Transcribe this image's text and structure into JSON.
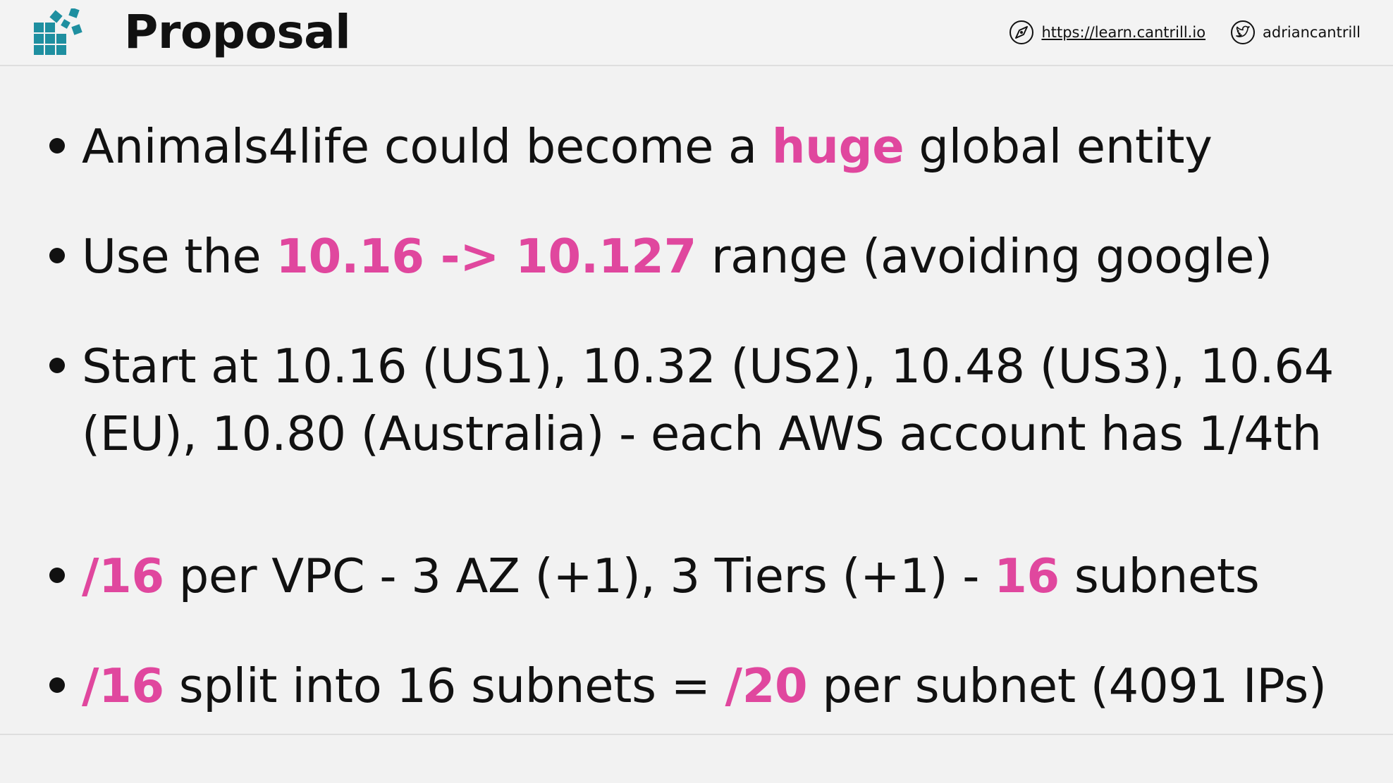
{
  "header": {
    "title": "Proposal",
    "website": "https://learn.cantrill.io",
    "twitter": "adriancantrill",
    "logo_icon": "cube-grid-logo-icon",
    "website_icon": "compass-icon",
    "twitter_icon": "twitter-bird-icon"
  },
  "colors": {
    "highlight": "#e0479e",
    "logo": "#1e8fa0"
  },
  "bullets": [
    {
      "pre": "Animals4life could become a ",
      "highlight": "huge",
      "post": " global entity"
    },
    {
      "pre": "Use the ",
      "highlight": "10.16 -> 10.127",
      "post": " range (avoiding google)"
    },
    {
      "line1": "Start at 10.16 (US1), 10.32 (US2), 10.48 (US3), 10.64",
      "line2": "(EU), 10.80 (Australia) - each AWS account has 1/4th"
    },
    {
      "highlight1": "/16",
      "mid": " per VPC - 3 AZ (+1), 3 Tiers (+1) - ",
      "highlight2": "16",
      "post": " subnets"
    },
    {
      "highlight1": "/16",
      "mid": " split into 16 subnets = ",
      "highlight2": "/20",
      "post": " per subnet (4091 IPs)"
    }
  ]
}
